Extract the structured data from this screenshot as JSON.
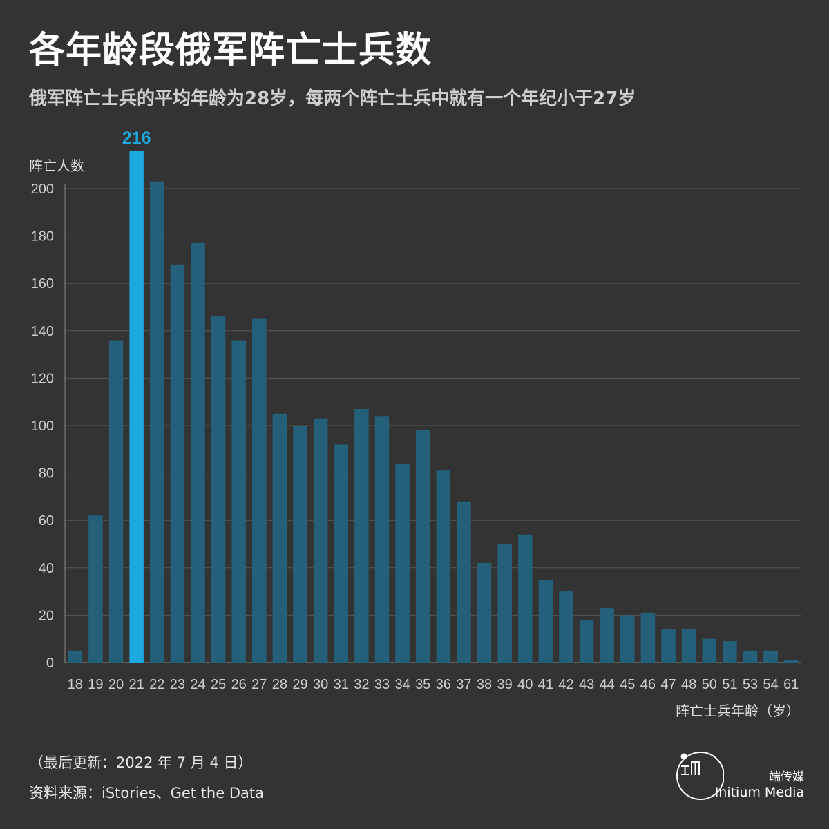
{
  "title": "各年龄段俄军阵亡士兵数",
  "subtitle": "俄军阵亡士兵的平均年龄为28岁，每两个阵亡士兵中就有一个年纪小于27岁",
  "footer": {
    "update": "（最后更新：2022 年 7 月 4 日）",
    "source": "资料来源：iStories、Get the Data",
    "brand_cn": "端传媒",
    "brand_en": "Initium Media"
  },
  "colors": {
    "background": "#333333",
    "bar": "#25607a",
    "highlight": "#1ea8e0",
    "grid": "#555555",
    "axis_text": "#cfcfcf"
  },
  "chart_data": {
    "type": "bar",
    "title": "各年龄段俄军阵亡士兵数",
    "ylabel": "阵亡人数",
    "xlabel": "阵亡士兵年龄（岁）",
    "ylim": [
      0,
      216
    ],
    "yticks": [
      0,
      20,
      40,
      60,
      80,
      100,
      120,
      140,
      160,
      180,
      200
    ],
    "grid": true,
    "categories": [
      "18",
      "19",
      "20",
      "21",
      "22",
      "23",
      "24",
      "25",
      "26",
      "27",
      "28",
      "29",
      "30",
      "31",
      "32",
      "33",
      "34",
      "35",
      "36",
      "37",
      "38",
      "39",
      "40",
      "41",
      "42",
      "43",
      "44",
      "45",
      "46",
      "47",
      "48",
      "50",
      "51",
      "53",
      "54",
      "61"
    ],
    "values": [
      5,
      62,
      136,
      216,
      203,
      168,
      177,
      146,
      136,
      145,
      105,
      100,
      103,
      92,
      107,
      104,
      84,
      98,
      81,
      68,
      42,
      50,
      54,
      35,
      30,
      18,
      23,
      20,
      21,
      14,
      14,
      10,
      9,
      5,
      5,
      1
    ],
    "highlight": {
      "category": "21",
      "label": "216"
    }
  }
}
